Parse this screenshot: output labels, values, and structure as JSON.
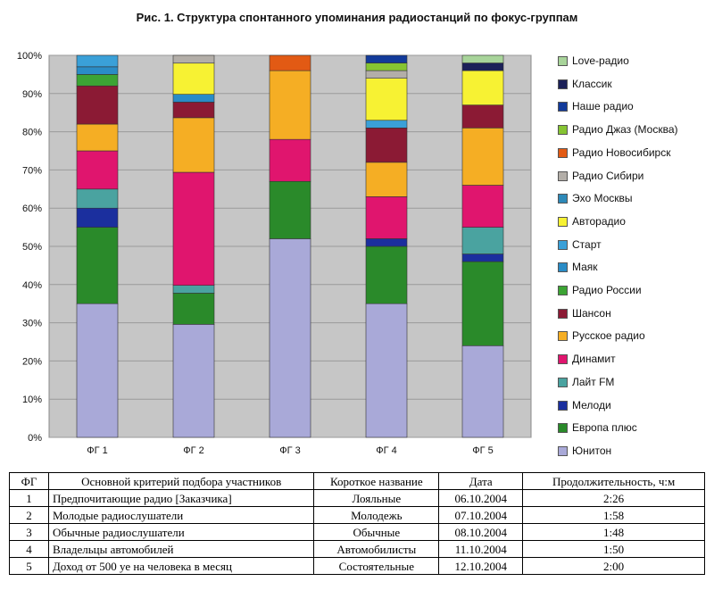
{
  "chart_data": {
    "type": "bar",
    "stacked": true,
    "normalized": true,
    "title": "Рис. 1. Структура спонтанного упоминания радиостанций по фокус-группам",
    "categories": [
      "ФГ 1",
      "ФГ 2",
      "ФГ 3",
      "ФГ 4",
      "ФГ 5"
    ],
    "y_ticks": [
      "0%",
      "10%",
      "20%",
      "30%",
      "40%",
      "50%",
      "60%",
      "70%",
      "80%",
      "90%",
      "100%"
    ],
    "ylim": [
      0,
      100
    ],
    "xlabel": "",
    "ylabel": "",
    "legend_position": "right",
    "series": [
      {
        "name": "Юнитон",
        "color": "#a9a9d8",
        "values": [
          35,
          29,
          52,
          35,
          24
        ]
      },
      {
        "name": "Европа плюс",
        "color": "#2a8a2a",
        "values": [
          20,
          8,
          15,
          15,
          22
        ]
      },
      {
        "name": "Мелоди",
        "color": "#1b2f9e",
        "values": [
          5,
          0,
          0,
          2,
          2
        ]
      },
      {
        "name": "Лайт FM",
        "color": "#4aa3a0",
        "values": [
          5,
          2,
          0,
          0,
          7
        ]
      },
      {
        "name": "Динамит",
        "color": "#e0156e",
        "values": [
          10,
          29,
          11,
          11,
          11
        ]
      },
      {
        "name": "Русское радио",
        "color": "#f5ae24",
        "values": [
          7,
          14,
          18,
          9,
          15
        ]
      },
      {
        "name": "Шансон",
        "color": "#8b1a34",
        "values": [
          10,
          4,
          0,
          9,
          6
        ]
      },
      {
        "name": "Радио России",
        "color": "#3ca434",
        "values": [
          3,
          0,
          0,
          0,
          0
        ]
      },
      {
        "name": "Маяк",
        "color": "#2a8cc6",
        "values": [
          2,
          2,
          0,
          0,
          0
        ]
      },
      {
        "name": "Старт",
        "color": "#3aa0d8",
        "values": [
          3,
          0,
          0,
          2,
          0
        ]
      },
      {
        "name": "Авторадио",
        "color": "#f7f233",
        "values": [
          0,
          8,
          0,
          11,
          9
        ]
      },
      {
        "name": "Эхо Москвы",
        "color": "#2d89b8",
        "values": [
          0,
          0,
          0,
          0,
          0
        ]
      },
      {
        "name": "Радио Сибири",
        "color": "#b3aea8",
        "values": [
          0,
          2,
          0,
          2,
          0
        ]
      },
      {
        "name": "Радио Новосибирск",
        "color": "#e25a14",
        "values": [
          0,
          0,
          4,
          0,
          0
        ]
      },
      {
        "name": "Радио Джаз (Москва)",
        "color": "#86c432",
        "values": [
          0,
          0,
          0,
          2,
          0
        ]
      },
      {
        "name": "Наше радио",
        "color": "#123a9a",
        "values": [
          0,
          0,
          0,
          2,
          0
        ]
      },
      {
        "name": "Классик",
        "color": "#1c2158",
        "values": [
          0,
          0,
          0,
          0,
          2
        ]
      },
      {
        "name": "Love-радио",
        "color": "#a8d49a",
        "values": [
          0,
          0,
          0,
          0,
          2
        ]
      }
    ]
  },
  "table": {
    "headers": [
      "ФГ",
      "Основной критерий подбора участников",
      "Короткое название",
      "Дата",
      "Продолжительность, ч:м"
    ],
    "rows": [
      [
        "1",
        "Предпочитающие радио [Заказчика]",
        "Лояльные",
        "06.10.2004",
        "2:26"
      ],
      [
        "2",
        "Молодые радиослушатели",
        "Молодежь",
        "07.10.2004",
        "1:58"
      ],
      [
        "3",
        "Обычные радиослушатели",
        "Обычные",
        "08.10.2004",
        "1:48"
      ],
      [
        "4",
        "Владельцы автомобилей",
        "Автомобилисты",
        "11.10.2004",
        "1:50"
      ],
      [
        "5",
        "Доход от 500 уе на человека в месяц",
        "Состоятельные",
        "12.10.2004",
        "2:00"
      ]
    ]
  }
}
